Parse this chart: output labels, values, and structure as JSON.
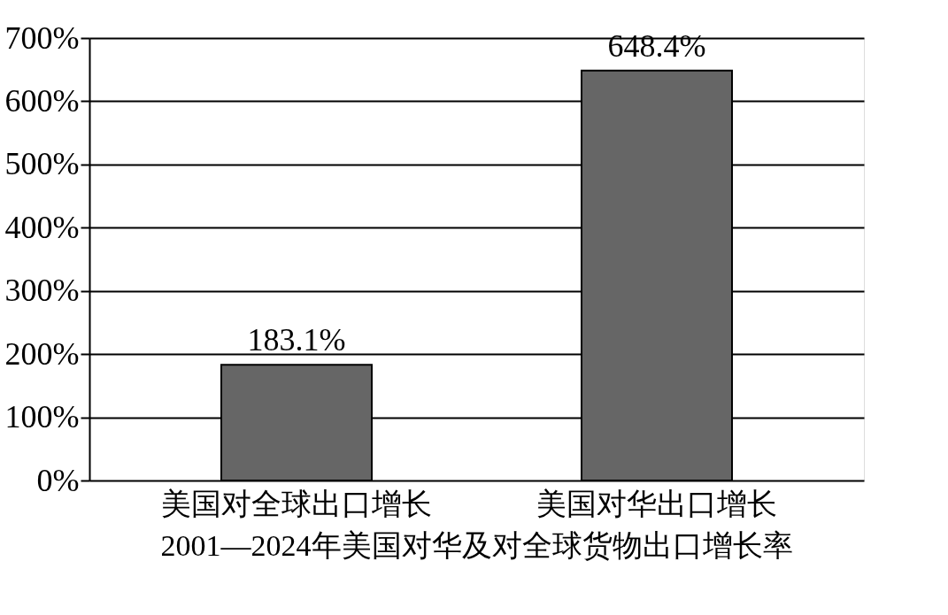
{
  "chart_data": {
    "type": "bar",
    "title": "2001—2024年美国对华及对全球货物出口增长率",
    "categories": [
      "美国对全球出口增长",
      "美国对华出口增长"
    ],
    "values": [
      183.1,
      648.4
    ],
    "value_labels": [
      "183.1%",
      "648.4%"
    ],
    "color": "#666666",
    "ylim": [
      0,
      700
    ],
    "yticks": [
      {
        "value": 0,
        "label": "0%"
      },
      {
        "value": 100,
        "label": "100%"
      },
      {
        "value": 200,
        "label": "200%"
      },
      {
        "value": 300,
        "label": "300%"
      },
      {
        "value": 400,
        "label": "400%"
      },
      {
        "value": 500,
        "label": "500%"
      },
      {
        "value": 600,
        "label": "600%"
      },
      {
        "value": 700,
        "label": "700%"
      }
    ],
    "grid": "y"
  }
}
